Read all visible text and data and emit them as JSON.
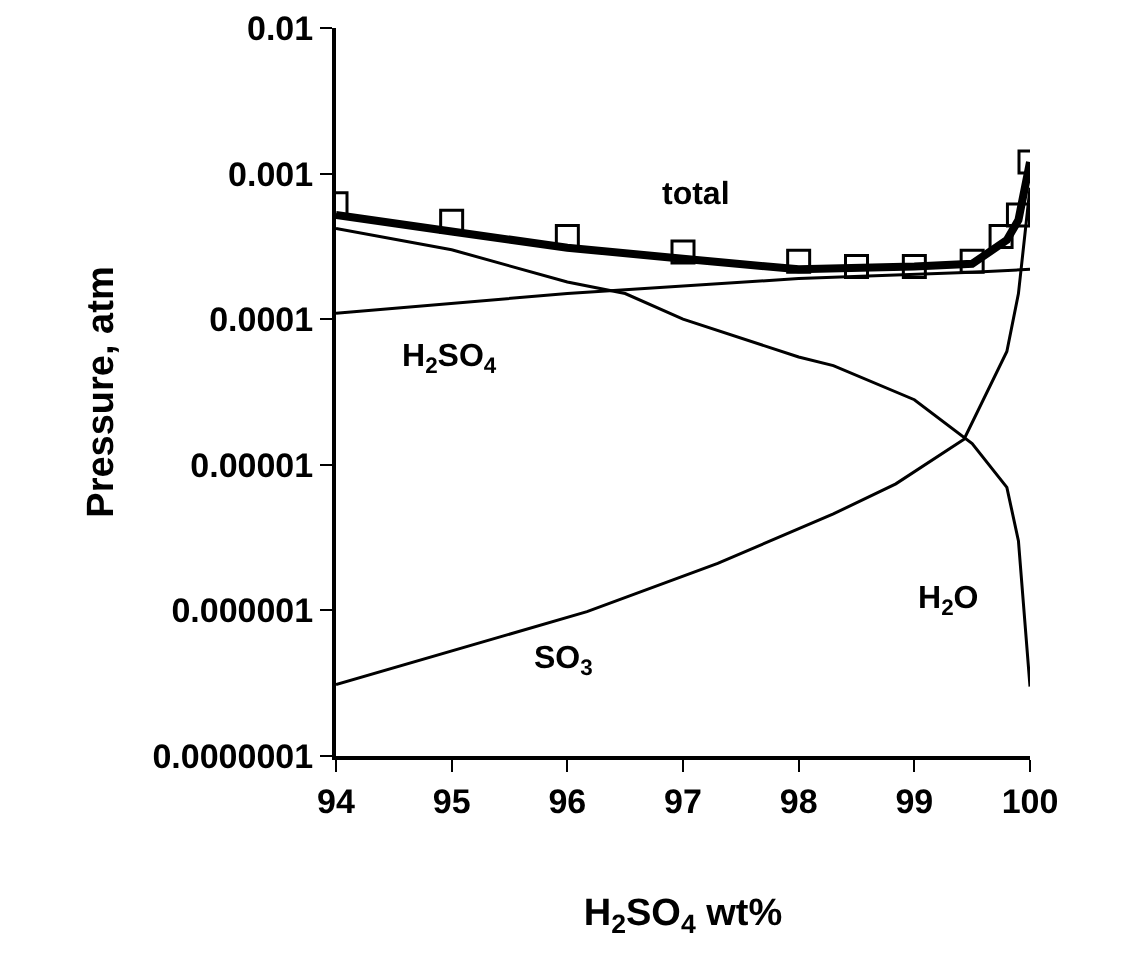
{
  "chart_data": {
    "type": "line",
    "xlabel": "H$_{2}$SO$_{4}$ wt%",
    "ylabel": "Pressure, atm",
    "log": "y",
    "grid": false,
    "legend": false,
    "xlim": [
      94,
      100
    ],
    "xticks": [
      94,
      95,
      96,
      97,
      98,
      99,
      100
    ],
    "ylim": [
      1e-07,
      0.01
    ],
    "yticks": [
      {
        "value": 1e-07,
        "label": "0.0000001"
      },
      {
        "value": 1e-06,
        "label": "0.000001"
      },
      {
        "value": 1e-05,
        "label": "0.00001"
      },
      {
        "value": 0.0001,
        "label": "0.0001"
      },
      {
        "value": 0.001,
        "label": "0.001"
      },
      {
        "value": 0.01,
        "label": "0.01"
      }
    ],
    "series": [
      {
        "name": "total",
        "color": "#000000",
        "x": [
          94,
          95,
          96,
          97,
          98,
          99,
          99.5,
          99.8,
          99.9,
          100
        ],
        "values": [
          0.00052,
          0.0004,
          0.00031,
          0.00026,
          0.00022,
          0.00023,
          0.00024,
          0.00035,
          0.00048,
          0.0012
        ]
      },
      {
        "type": "scatter",
        "marker": "square",
        "color": "#000000",
        "x": [
          94,
          95,
          96,
          97,
          98,
          98.5,
          99,
          99.5,
          99.75,
          99.9,
          100
        ],
        "values": [
          0.00062,
          0.00047,
          0.00037,
          0.00029,
          0.00025,
          0.00023,
          0.00023,
          0.00025,
          0.00037,
          0.00052,
          0.0012
        ]
      },
      {
        "name": "H$_{2}$SO$_{4}$",
        "color": "#000000",
        "x": [
          94,
          96,
          98,
          99.5,
          100
        ],
        "values": [
          0.00011,
          0.00015,
          0.00019,
          0.00021,
          0.00022
        ]
      },
      {
        "name": "H$_{2}$O",
        "color": "#000000",
        "x": [
          94,
          95,
          96,
          96.5,
          97,
          98,
          98.3,
          99,
          99.5,
          99.8,
          99.9,
          100
        ],
        "values": [
          0.00042,
          0.0003,
          0.00018,
          0.00015,
          0.0001,
          5.5e-05,
          4.8e-05,
          2.8e-05,
          1.4e-05,
          7e-06,
          3e-06,
          3e-07
        ]
      },
      {
        "name": "SO$_{3}$",
        "color": "#000000",
        "x": [
          94,
          96.17,
          97.3,
          98.3,
          98.84,
          99.43,
          99.8,
          99.9,
          100
        ],
        "values": [
          3.1e-07,
          9.8e-07,
          2.1e-06,
          4.6e-06,
          7.4e-06,
          1.5e-05,
          6e-05,
          0.00015,
          0.0008
        ]
      }
    ]
  }
}
